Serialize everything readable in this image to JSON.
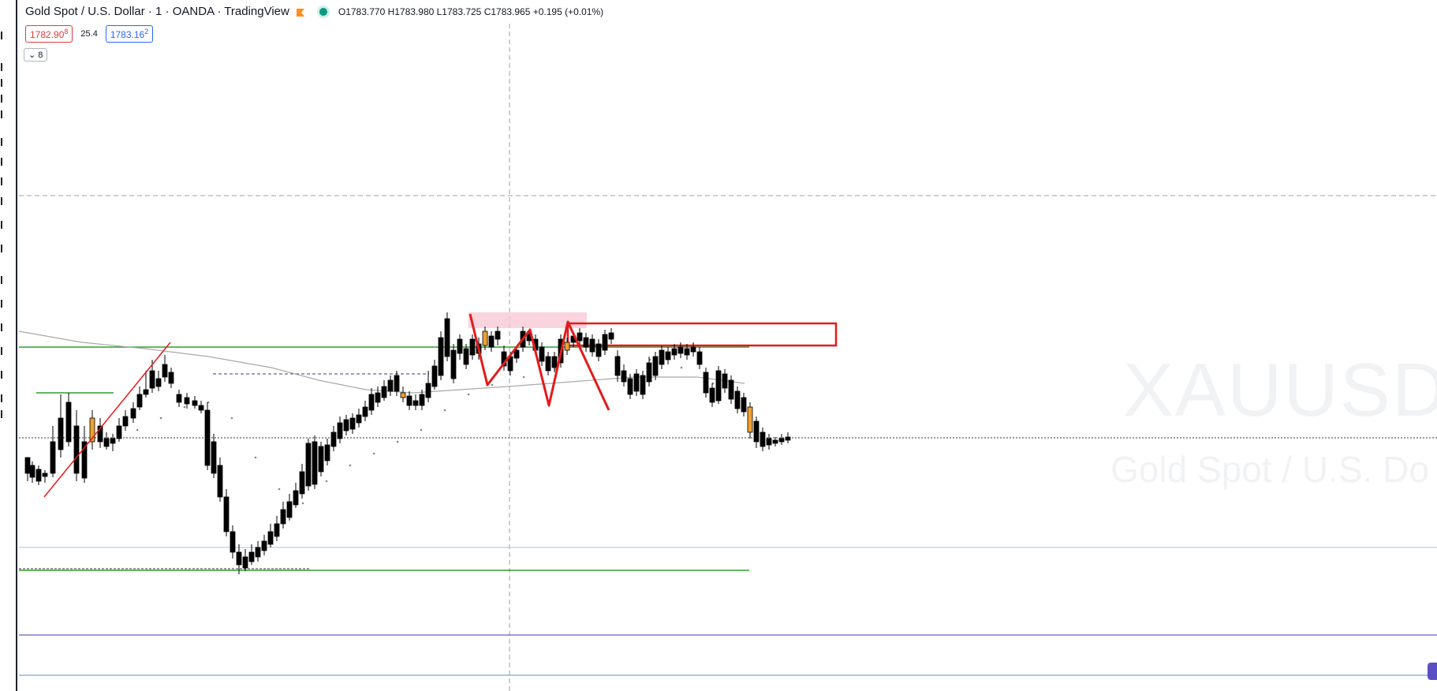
{
  "header": {
    "title": "Gold Spot / U.S. Dollar · 1 · OANDA · TradingView",
    "ohlc": "O1783.770 H1783.980 L1783.725 C1783.965 +0.195 (+0.01%)",
    "flag_icon": "bookmark-flag-icon",
    "status_icon": "market-open-dot-icon"
  },
  "quote": {
    "sell_main": "1782.90",
    "sell_sup": "8",
    "spread": "25.4",
    "buy_main": "1783.16",
    "buy_sup": "2"
  },
  "indicators_toggle": {
    "label": "8",
    "icon": "chevron-down-icon"
  },
  "watermark": {
    "symbol": "XAUUSD,",
    "description": "Gold Spot / U.S. Do"
  },
  "colors": {
    "bull": "#ffffff",
    "bear": "#000000",
    "highlight": "#f0a030",
    "drawing": "#e21b1b",
    "level_green": "#2e9e2e",
    "level_blue": "#9ec7e6",
    "level_purple": "#6b5fbf",
    "zone_pink": "#f8c9d6",
    "sell_border": "#e23b3b",
    "buy_border": "#2962ff",
    "status_dot": "#089981",
    "flag": "#ff8c1a"
  }
}
